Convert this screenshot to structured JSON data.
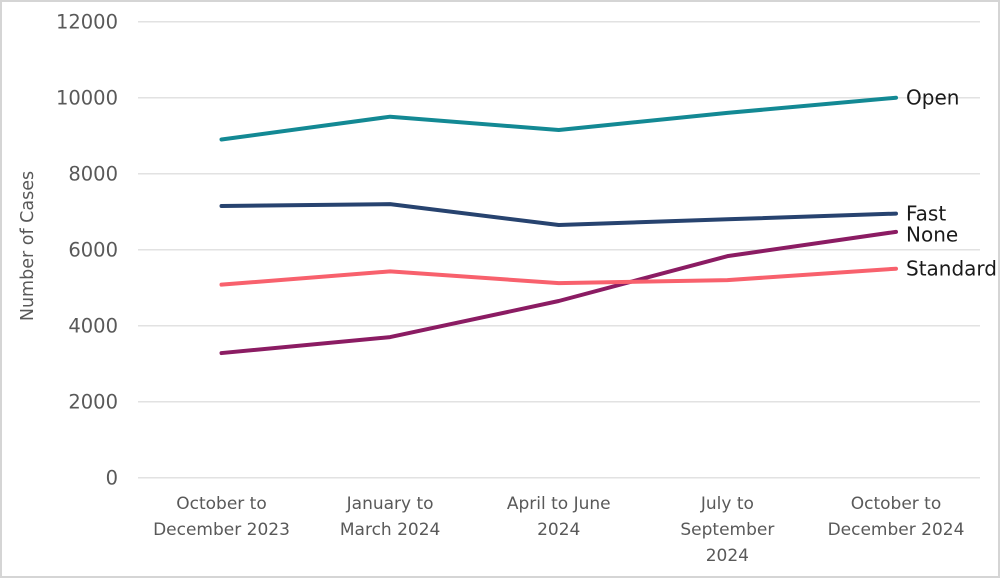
{
  "figure": {
    "background": "#ffffff",
    "border_color": "#d5d5d5",
    "axis_text_color": "#595959",
    "gridline_color": "#e2e2e2",
    "series_label_color": "#1a1a1a"
  },
  "chart_data": {
    "type": "line",
    "title": "",
    "xlabel": "",
    "ylabel": "Number of Cases",
    "ylim": [
      0,
      12000
    ],
    "yticks": [
      0,
      2000,
      4000,
      6000,
      8000,
      10000,
      12000
    ],
    "ytick_labels": [
      "0",
      "2000",
      "4000",
      "6000",
      "8000",
      "10000",
      "12000"
    ],
    "grid": "horizontal",
    "legend_position": "right-edge-direct-labels",
    "categories": [
      "October to December 2023",
      "January to March 2024",
      "April to June 2024",
      "July to September 2024",
      "October to December 2024"
    ],
    "category_label_lines": [
      [
        "October to",
        "December 2023"
      ],
      [
        "January to",
        "March 2024"
      ],
      [
        "April to June",
        "2024"
      ],
      [
        "July to",
        "September",
        "2024"
      ],
      [
        "October to",
        "December 2024"
      ]
    ],
    "series": [
      {
        "name": "Open",
        "color": "#138994",
        "values": [
          8900,
          9500,
          9150,
          9600,
          10000
        ]
      },
      {
        "name": "Fast",
        "color": "#27436f",
        "values": [
          7150,
          7200,
          6650,
          6800,
          6950
        ]
      },
      {
        "name": "None",
        "color": "#8b1c63",
        "values": [
          3280,
          3700,
          4650,
          5830,
          6470
        ]
      },
      {
        "name": "Standard",
        "color": "#f8616d",
        "values": [
          5080,
          5430,
          5120,
          5200,
          5500
        ]
      }
    ]
  }
}
